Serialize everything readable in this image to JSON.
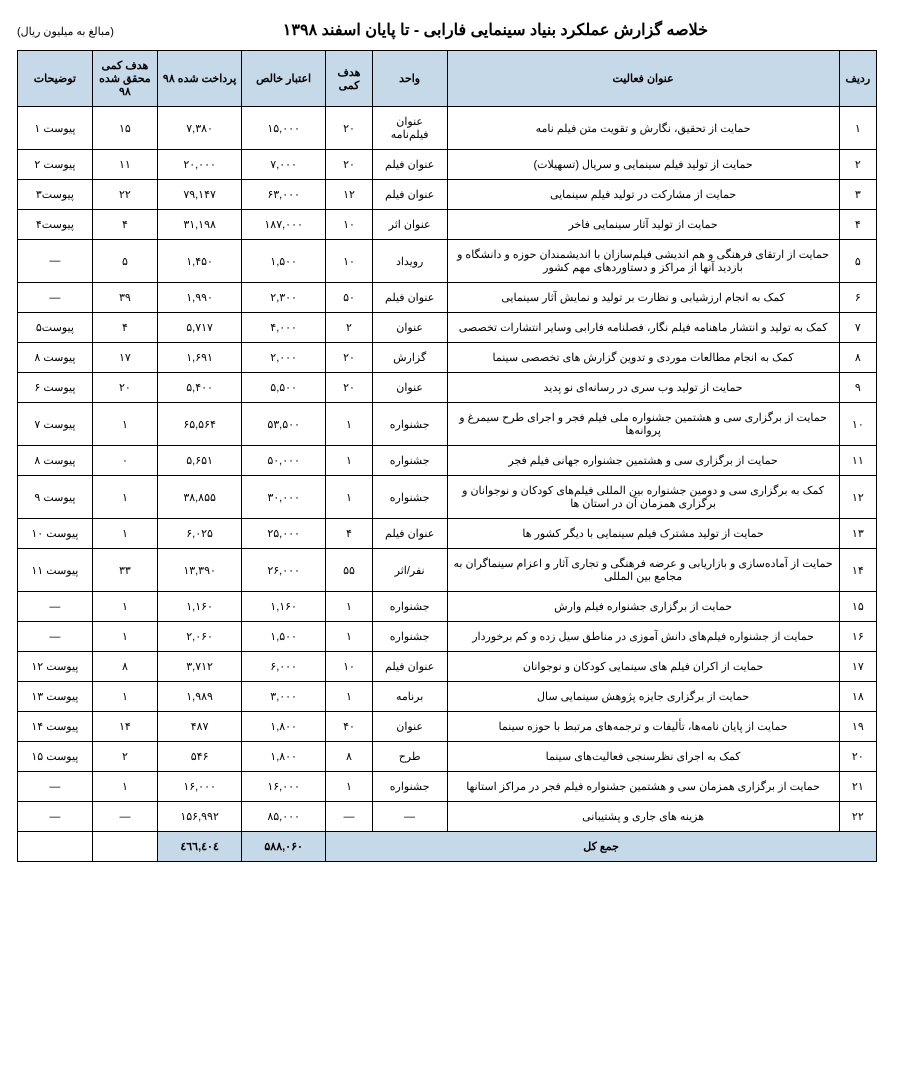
{
  "title": "خلاصه گزارش عملکرد بنیاد سینمایی فارابی - تا پایان اسفند ۱۳۹۸",
  "subtitle": "(مبالغ به میلیون ریال)",
  "headers": {
    "row": "ردیف",
    "activity": "عنوان فعالیت",
    "unit": "واحد",
    "target": "هدف کمی",
    "credit": "اعتبار خالص",
    "paid": "پرداخت شده ۹۸",
    "achieved": "هدف کمی محقق شده ۹۸",
    "notes": "توضیحات"
  },
  "rows": [
    {
      "n": "۱",
      "activity": "حمایت از تحقیق، نگارش و تقویت متن فیلم نامه",
      "unit": "عنوان فیلم‌نامه",
      "target": "۲۰",
      "credit": "۱۵,۰۰۰",
      "paid": "۷,۳۸۰",
      "achieved": "۱۵",
      "notes": "پیوست ۱"
    },
    {
      "n": "۲",
      "activity": "حمایت از تولید فیلم سینمایی و سریال (تسهیلات)",
      "unit": "عنوان فیلم",
      "target": "۲۰",
      "credit": "۷,۰۰۰",
      "paid": "۲۰,۰۰۰",
      "achieved": "۱۱",
      "notes": "پیوست ۲"
    },
    {
      "n": "۳",
      "activity": "حمایت از مشارکت در تولید فیلم سینمایی",
      "unit": "عنوان فیلم",
      "target": "۱۲",
      "credit": "۶۳,۰۰۰",
      "paid": "۷۹,۱۴۷",
      "achieved": "۲۲",
      "notes": "پیوست۳"
    },
    {
      "n": "۴",
      "activity": "حمایت از تولید آثار سینمایی فاخر",
      "unit": "عنوان اثر",
      "target": "۱۰",
      "credit": "۱۸۷,۰۰۰",
      "paid": "۳۱,۱۹۸",
      "achieved": "۴",
      "notes": "پیوست۴"
    },
    {
      "n": "۵",
      "activity": "حمایت از ارتقای فرهنگی و هم اندیشی فیلم‌سازان با اندیشمندان حوزه و دانشگاه و بازدید آنها از مراکز و دستاوردهای مهم کشور",
      "unit": "رویداد",
      "target": "۱۰",
      "credit": "۱,۵۰۰",
      "paid": "۱,۴۵۰",
      "achieved": "۵",
      "notes": "—"
    },
    {
      "n": "۶",
      "activity": "کمک به انجام ارزشیابی و نظارت بر تولید و نمایش آثار سینمایی",
      "unit": "عنوان فیلم",
      "target": "۵۰",
      "credit": "۲,۳۰۰",
      "paid": "۱,۹۹۰",
      "achieved": "۳۹",
      "notes": "—"
    },
    {
      "n": "۷",
      "activity": "کمک به تولید و انتشار ماهنامه فیلم نگار، فصلنامه فارابی وسایر انتشارات تخصصی",
      "unit": "عنوان",
      "target": "۲",
      "credit": "۴,۰۰۰",
      "paid": "۵,۷۱۷",
      "achieved": "۴",
      "notes": "پیوست۵"
    },
    {
      "n": "۸",
      "activity": "کمک به انجام مطالعات موردی و تدوین گزارش های تخصصی سینما",
      "unit": "گزارش",
      "target": "۲۰",
      "credit": "۲,۰۰۰",
      "paid": "۱,۶۹۱",
      "achieved": "۱۷",
      "notes": "پیوست ۸"
    },
    {
      "n": "۹",
      "activity": "حمایت از تولید وب سری در رسانه‌ای نو پدید",
      "unit": "عنوان",
      "target": "۲۰",
      "credit": "۵,۵۰۰",
      "paid": "۵,۴۰۰",
      "achieved": "۲۰",
      "notes": "پیوست ۶"
    },
    {
      "n": "۱۰",
      "activity": "حمایت از برگزاری سی و هشتمین جشنواره ملی فیلم فجر و اجرای طرح سیمرغ و پروانه‌ها",
      "unit": "جشنواره",
      "target": "۱",
      "credit": "۵۳,۵۰۰",
      "paid": "۶۵,۵۶۴",
      "achieved": "۱",
      "notes": "پیوست ۷"
    },
    {
      "n": "۱۱",
      "activity": "حمایت از برگزاری سی و هشتمین جشنواره جهانی فیلم فجر",
      "unit": "جشنواره",
      "target": "۱",
      "credit": "۵۰,۰۰۰",
      "paid": "۵,۶۵۱",
      "achieved": "۰",
      "notes": "پیوست ۸"
    },
    {
      "n": "۱۲",
      "activity": "کمک به برگزاری سی و دومین جشنواره بین المللی فیلم‌های کودکان و نوجوانان و برگزاری همزمان آن در استان ها",
      "unit": "جشنواره",
      "target": "۱",
      "credit": "۳۰,۰۰۰",
      "paid": "۳۸,۸۵۵",
      "achieved": "۱",
      "notes": "پیوست ۹"
    },
    {
      "n": "۱۳",
      "activity": "حمایت از تولید مشترک فیلم سینمایی با دیگر کشور ها",
      "unit": "عنوان فیلم",
      "target": "۴",
      "credit": "۲۵,۰۰۰",
      "paid": "۶,۰۲۵",
      "achieved": "۱",
      "notes": "پیوست ۱۰"
    },
    {
      "n": "۱۴",
      "activity": "حمایت از آماده‌سازی و بازاریابی و عرضه فرهنگی و تجاری آثار و اعزام سینماگران به مجامع بین المللی",
      "unit": "نفر/اثر",
      "target": "۵۵",
      "credit": "۲۶,۰۰۰",
      "paid": "۱۳,۳۹۰",
      "achieved": "۳۳",
      "notes": "پیوست ۱۱"
    },
    {
      "n": "۱۵",
      "activity": "حمایت از برگزاری جشنواره فیلم وارش",
      "unit": "جشنواره",
      "target": "۱",
      "credit": "۱,۱۶۰",
      "paid": "۱,۱۶۰",
      "achieved": "۱",
      "notes": "—"
    },
    {
      "n": "۱۶",
      "activity": "حمایت از جشنواره فیلم‌های دانش آموزی در مناطق سیل زده و کم برخوردار",
      "unit": "جشنواره",
      "target": "۱",
      "credit": "۱,۵۰۰",
      "paid": "۲,۰۶۰",
      "achieved": "۱",
      "notes": "—"
    },
    {
      "n": "۱۷",
      "activity": "حمایت از اکران فیلم های سینمایی کودکان و نوجوانان",
      "unit": "عنوان فیلم",
      "target": "۱۰",
      "credit": "۶,۰۰۰",
      "paid": "۳,۷۱۲",
      "achieved": "۸",
      "notes": "پیوست ۱۲"
    },
    {
      "n": "۱۸",
      "activity": "حمایت از برگزاری جایزه پژوهش سینمایی سال",
      "unit": "برنامه",
      "target": "۱",
      "credit": "۳,۰۰۰",
      "paid": "۱,۹۸۹",
      "achieved": "۱",
      "notes": "پیوست ۱۳"
    },
    {
      "n": "۱۹",
      "activity": "حمایت از پایان نامه‌ها، تألیفات و ترجمه‌های مرتبط با حوزه سینما",
      "unit": "عنوان",
      "target": "۴۰",
      "credit": "۱,۸۰۰",
      "paid": "۴۸۷",
      "achieved": "۱۴",
      "notes": "پیوست ۱۴"
    },
    {
      "n": "۲۰",
      "activity": "کمک به اجرای نظرسنجی فعالیت‌های سینما",
      "unit": "طرح",
      "target": "۸",
      "credit": "۱,۸۰۰",
      "paid": "۵۴۶",
      "achieved": "۲",
      "notes": "پیوست ۱۵"
    },
    {
      "n": "۲۱",
      "activity": "حمایت از برگزاری همزمان سی و هشتمین جشنواره فیلم فجر در مراکز استانها",
      "unit": "جشنواره",
      "target": "۱",
      "credit": "۱۶,۰۰۰",
      "paid": "۱۶,۰۰۰",
      "achieved": "۱",
      "notes": "—"
    },
    {
      "n": "۲۲",
      "activity": "هزینه های جاری و پشتیبانی",
      "unit": "—",
      "target": "—",
      "credit": "۸۵,۰۰۰",
      "paid": "۱۵۶,۹۹۲",
      "achieved": "—",
      "notes": "—"
    }
  ],
  "total": {
    "label": "جمع کل",
    "credit": "۵۸۸,۰۶۰",
    "paid": "٤٦٦,٤۰٤"
  }
}
